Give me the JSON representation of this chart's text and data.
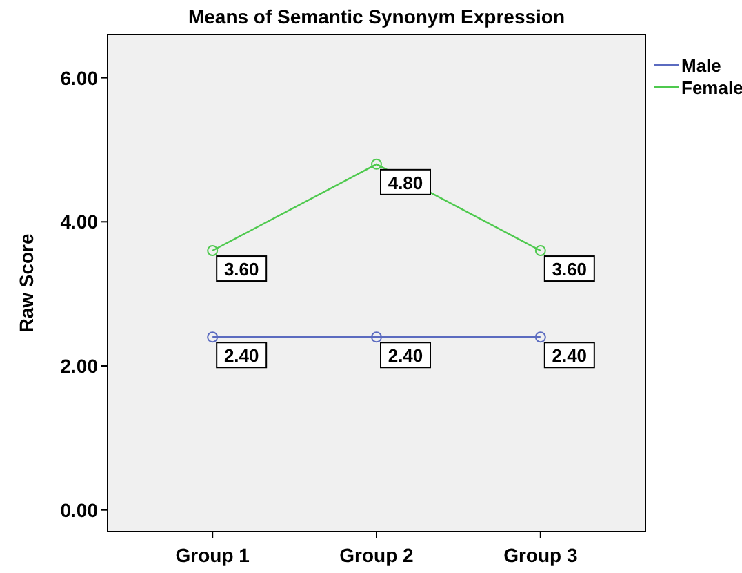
{
  "chart_data": {
    "type": "line",
    "title": "Means of Semantic Synonym Expression",
    "ylabel": "Raw Score",
    "categories": [
      "Group 1",
      "Group 2",
      "Group 3"
    ],
    "series": [
      {
        "name": "Male",
        "color": "#5b6bc0",
        "values": [
          2.4,
          2.4,
          2.4
        ],
        "value_labels": [
          "2.40",
          "2.40",
          "2.40"
        ]
      },
      {
        "name": "Female",
        "color": "#4ec94e",
        "values": [
          3.6,
          4.8,
          3.6
        ],
        "value_labels": [
          "3.60",
          "4.80",
          "3.60"
        ]
      }
    ],
    "ylim": [
      -0.3,
      6.6
    ],
    "yticks": [
      {
        "value": 0,
        "label": "0.00"
      },
      {
        "value": 2,
        "label": "2.00"
      },
      {
        "value": 4,
        "label": "4.00"
      },
      {
        "value": 6,
        "label": "6.00"
      }
    ],
    "grid": false,
    "legend": "right",
    "marker": "circle",
    "line_style": "solid"
  }
}
